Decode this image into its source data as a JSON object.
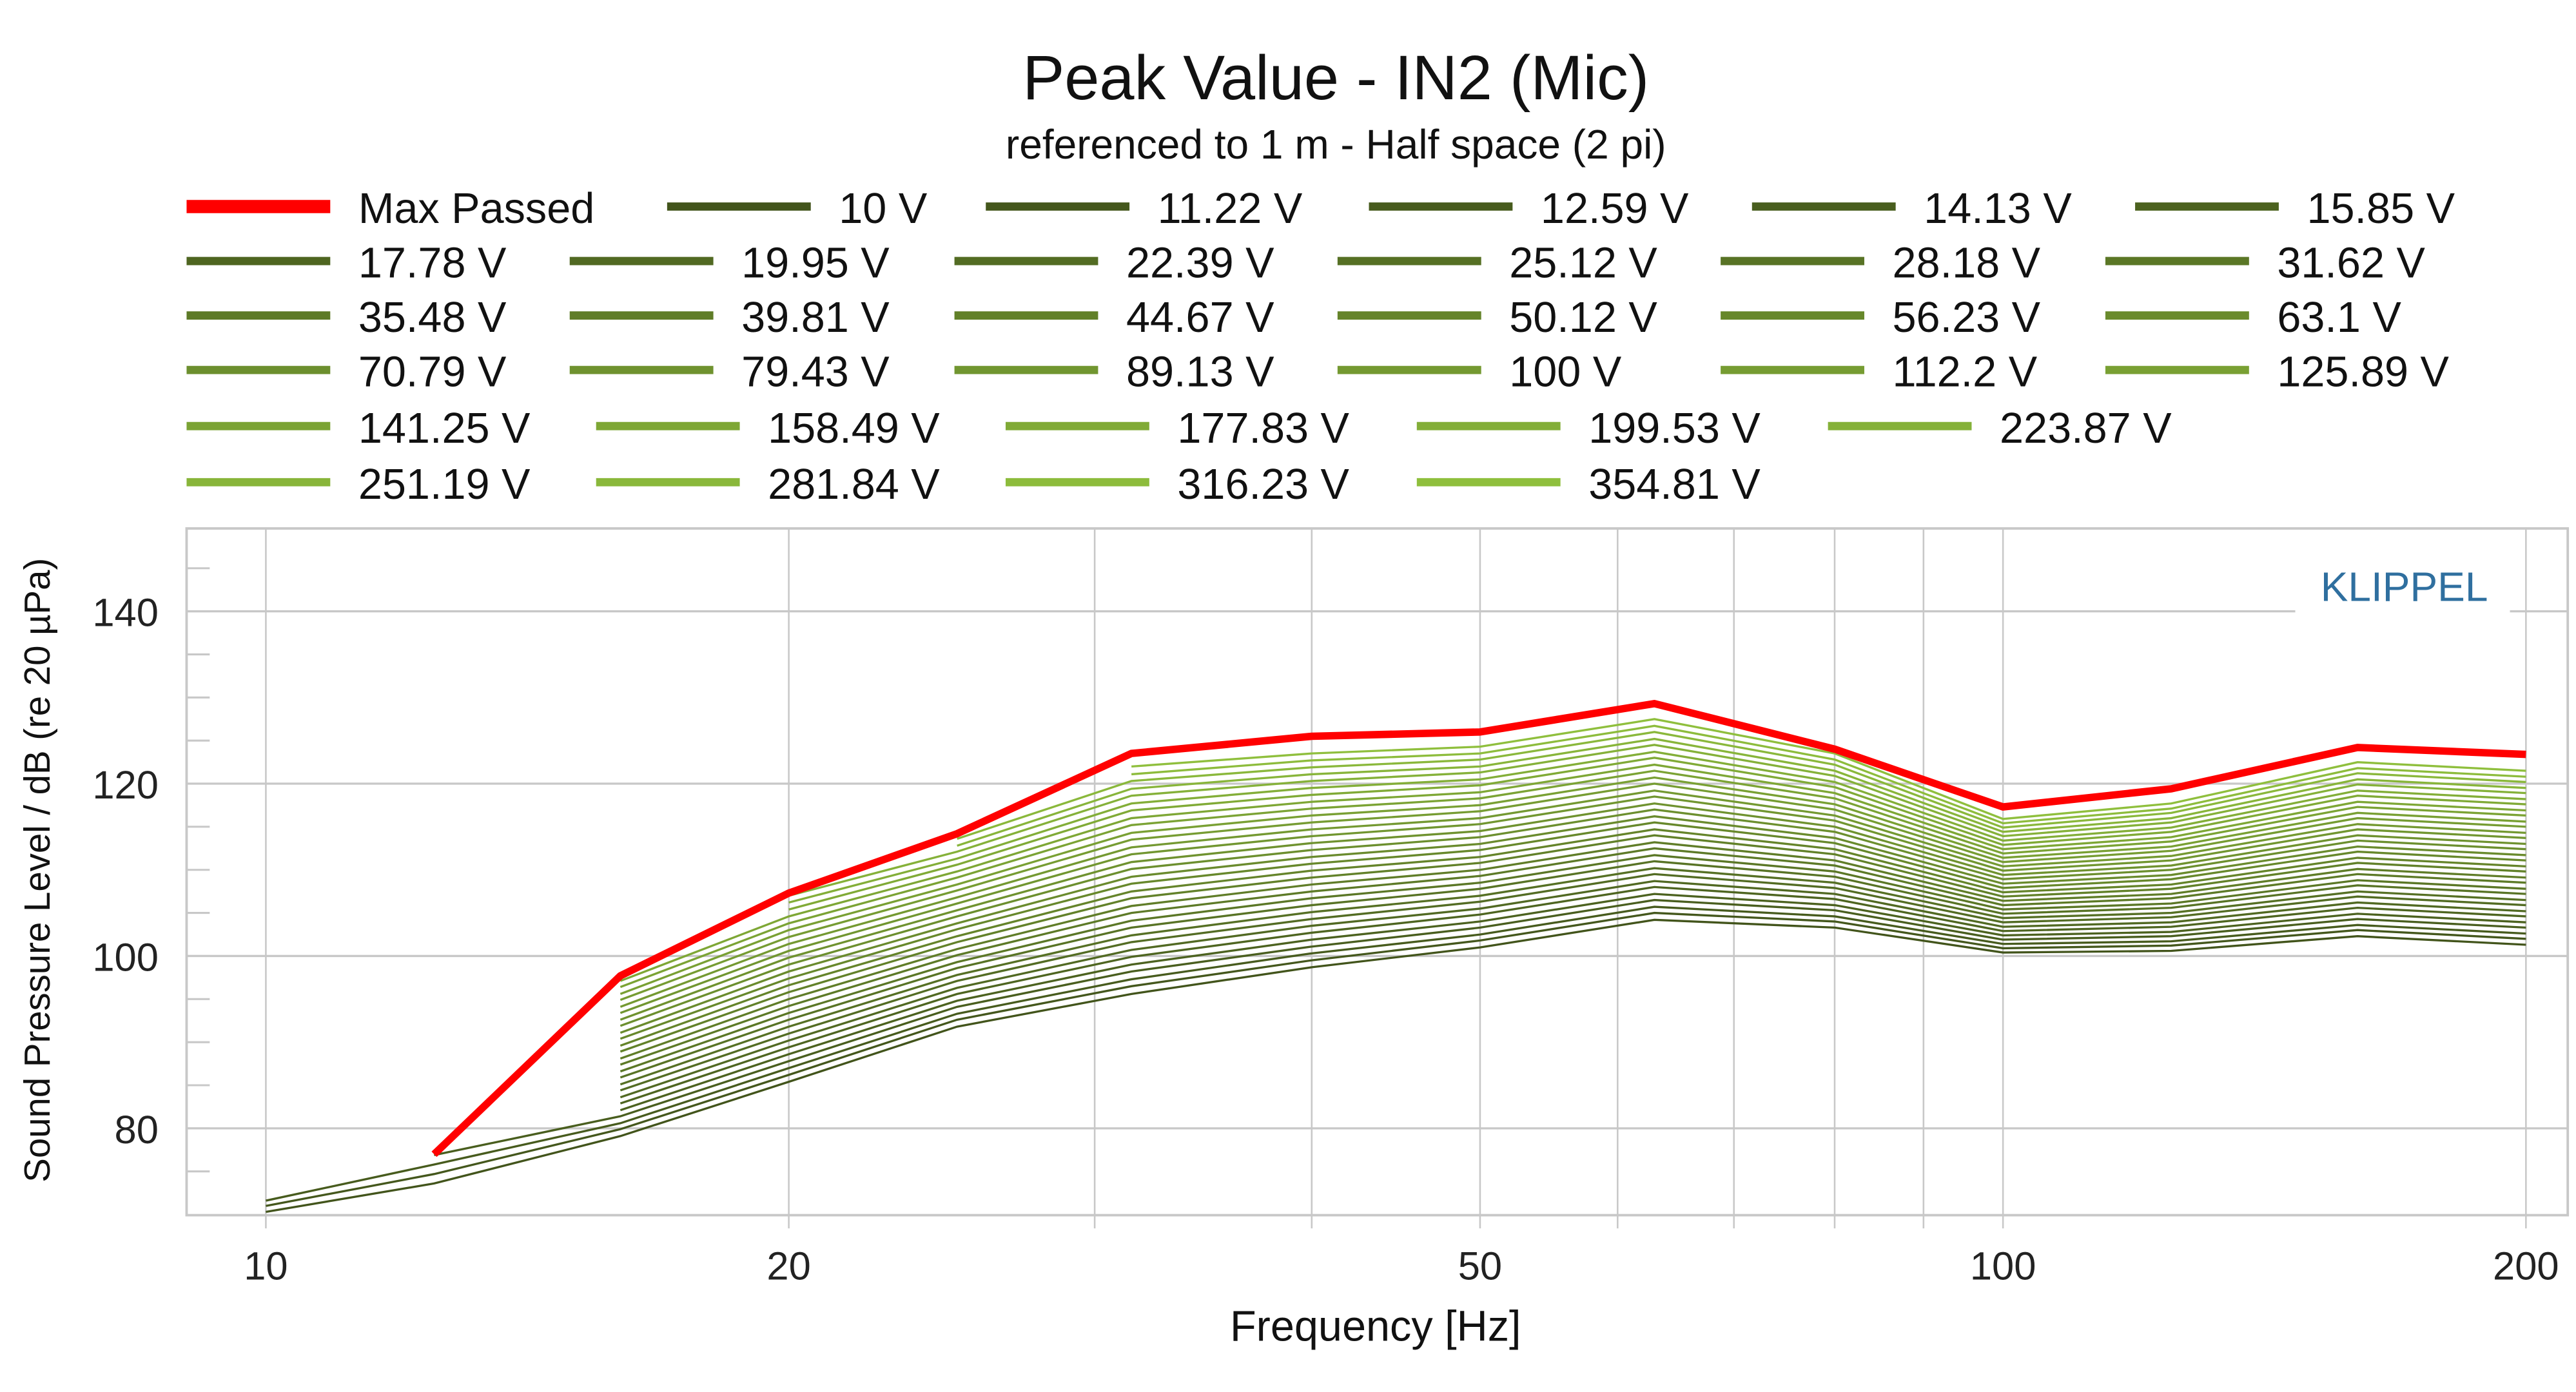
{
  "chart_data": {
    "type": "line",
    "title": "Peak Value - IN2 (Mic)",
    "subtitle": "referenced to 1 m - Half space (2 pi)",
    "xlabel": "Frequency [Hz]",
    "ylabel": "Sound Pressure Level / dB (re 20 µPa)",
    "watermark": "KLIPPEL",
    "x_scale": "log",
    "xlim": [
      8.5,
      210
    ],
    "ylim": [
      70,
      150
    ],
    "x_ticks": [
      10,
      20,
      50,
      100,
      200
    ],
    "x_tick_labels": [
      "10",
      "20",
      "50",
      "100",
      "200"
    ],
    "y_ticks": [
      80,
      100,
      120,
      140
    ],
    "y_tick_labels": [
      "80",
      "100",
      "120",
      "140"
    ],
    "grid": true,
    "legend_position": "top",
    "colors": {
      "max_passed": "#ff0000",
      "series_first": "#42541b",
      "series_last": "#8fbf3d",
      "watermark": "#2f6f9f",
      "grid": "#c8c8c8"
    },
    "x": [
      10,
      12.5,
      16,
      20,
      25,
      31.5,
      40,
      50,
      63,
      80,
      100,
      125,
      160,
      200
    ],
    "max_passed": {
      "name": "Max Passed",
      "values": [
        null,
        77.0,
        97.7,
        107.3,
        114.2,
        123.5,
        125.5,
        126.0,
        129.3,
        124.0,
        117.3,
        119.4,
        124.2,
        123.4
      ]
    },
    "series": [
      {
        "name": "10 V",
        "values": [
          70.3,
          73.6,
          79.1,
          85.4,
          91.8,
          95.6,
          98.7,
          101.0,
          104.2,
          103.3,
          100.4,
          100.6,
          102.3,
          101.3
        ]
      },
      {
        "name": "11.22 V",
        "values": [
          71.0,
          74.7,
          79.9,
          86.2,
          92.6,
          96.5,
          99.5,
          101.8,
          105.0,
          104.0,
          100.9,
          101.2,
          103.0,
          102.0
        ]
      },
      {
        "name": "12.59 V",
        "values": [
          71.6,
          75.8,
          80.6,
          87.0,
          93.3,
          97.3,
          100.3,
          102.5,
          105.7,
          104.6,
          101.4,
          101.7,
          103.6,
          102.6
        ]
      },
      {
        "name": "14.13 V",
        "values": [
          null,
          76.9,
          81.4,
          87.8,
          94.1,
          98.2,
          101.1,
          103.3,
          106.5,
          105.3,
          101.9,
          102.3,
          104.3,
          103.3
        ]
      },
      {
        "name": "15.85 V",
        "values": [
          null,
          null,
          82.1,
          88.6,
          94.8,
          99.0,
          101.9,
          104.0,
          107.2,
          105.9,
          102.4,
          102.8,
          104.9,
          103.9
        ]
      },
      {
        "name": "17.78 V",
        "values": [
          null,
          null,
          82.9,
          89.4,
          95.6,
          99.9,
          102.7,
          104.8,
          108.0,
          106.6,
          102.9,
          103.4,
          105.6,
          104.6
        ]
      },
      {
        "name": "19.95 V",
        "values": [
          null,
          null,
          83.6,
          90.2,
          96.3,
          100.7,
          103.5,
          105.5,
          108.7,
          107.2,
          103.4,
          103.9,
          106.2,
          105.2
        ]
      },
      {
        "name": "22.39 V",
        "values": [
          null,
          null,
          84.4,
          91.0,
          97.1,
          101.6,
          104.3,
          106.3,
          109.5,
          107.9,
          103.9,
          104.5,
          106.9,
          105.9
        ]
      },
      {
        "name": "25.12 V",
        "values": [
          null,
          null,
          85.1,
          91.8,
          97.8,
          102.4,
          105.1,
          107.0,
          110.2,
          108.5,
          104.4,
          105.0,
          107.5,
          106.5
        ]
      },
      {
        "name": "28.18 V",
        "values": [
          null,
          null,
          85.9,
          92.6,
          98.6,
          103.3,
          105.9,
          107.8,
          111.0,
          109.2,
          104.9,
          105.6,
          108.2,
          107.2
        ]
      },
      {
        "name": "31.62 V",
        "values": [
          null,
          null,
          86.6,
          93.4,
          99.3,
          104.1,
          106.7,
          108.5,
          111.7,
          109.8,
          105.4,
          106.1,
          108.8,
          107.8
        ]
      },
      {
        "name": "35.48 V",
        "values": [
          null,
          null,
          87.4,
          94.2,
          100.1,
          105.0,
          107.5,
          109.3,
          112.5,
          110.5,
          105.9,
          106.7,
          109.5,
          108.5
        ]
      },
      {
        "name": "39.81 V",
        "values": [
          null,
          null,
          88.1,
          95.0,
          100.8,
          105.8,
          108.3,
          110.0,
          113.2,
          111.1,
          106.4,
          107.2,
          110.1,
          109.1
        ]
      },
      {
        "name": "44.67 V",
        "values": [
          null,
          null,
          88.9,
          95.8,
          101.6,
          106.7,
          109.1,
          110.8,
          114.0,
          111.8,
          106.9,
          107.8,
          110.8,
          109.8
        ]
      },
      {
        "name": "50.12 V",
        "values": [
          null,
          null,
          89.6,
          96.6,
          102.3,
          107.5,
          109.9,
          111.5,
          114.7,
          112.4,
          107.4,
          108.3,
          111.4,
          110.4
        ]
      },
      {
        "name": "56.23 V",
        "values": [
          null,
          null,
          90.4,
          97.4,
          103.1,
          108.4,
          110.7,
          112.3,
          115.5,
          113.1,
          107.9,
          108.9,
          112.1,
          111.1
        ]
      },
      {
        "name": "63.1 V",
        "values": [
          null,
          null,
          91.1,
          98.2,
          103.8,
          109.2,
          111.5,
          113.0,
          116.2,
          113.7,
          108.4,
          109.4,
          112.7,
          111.7
        ]
      },
      {
        "name": "70.79 V",
        "values": [
          null,
          null,
          91.9,
          99.0,
          104.6,
          110.1,
          112.3,
          113.8,
          117.0,
          114.4,
          108.9,
          110.0,
          113.4,
          112.4
        ]
      },
      {
        "name": "79.43 V",
        "values": [
          null,
          null,
          92.6,
          99.8,
          105.3,
          110.9,
          113.1,
          114.5,
          117.7,
          115.0,
          109.4,
          110.5,
          114.0,
          113.0
        ]
      },
      {
        "name": "89.13 V",
        "values": [
          null,
          null,
          93.4,
          100.6,
          106.1,
          111.8,
          113.9,
          115.3,
          118.5,
          115.7,
          109.9,
          111.1,
          114.7,
          113.7
        ]
      },
      {
        "name": "100 V",
        "values": [
          null,
          null,
          94.1,
          101.4,
          106.8,
          112.6,
          114.7,
          116.0,
          119.2,
          116.3,
          110.4,
          111.6,
          115.3,
          114.3
        ]
      },
      {
        "name": "112.2 V",
        "values": [
          null,
          null,
          94.9,
          102.2,
          107.6,
          113.5,
          115.5,
          116.8,
          120.0,
          117.0,
          110.9,
          112.2,
          116.0,
          115.0
        ]
      },
      {
        "name": "125.89 V",
        "values": [
          null,
          null,
          95.6,
          103.0,
          108.3,
          114.3,
          116.3,
          117.5,
          120.7,
          117.6,
          111.4,
          112.7,
          116.6,
          115.6
        ]
      },
      {
        "name": "141.25 V",
        "values": [
          null,
          null,
          96.4,
          103.8,
          109.1,
          115.2,
          117.1,
          118.3,
          121.5,
          118.3,
          111.9,
          113.3,
          117.3,
          116.3
        ]
      },
      {
        "name": "158.49 V",
        "values": [
          null,
          null,
          97.1,
          104.6,
          109.8,
          116.0,
          117.9,
          119.0,
          122.2,
          118.9,
          112.4,
          113.8,
          117.9,
          116.9
        ]
      },
      {
        "name": "177.83 V",
        "values": [
          null,
          null,
          null,
          105.4,
          110.6,
          116.9,
          118.7,
          119.8,
          123.0,
          119.6,
          112.9,
          114.4,
          118.6,
          117.6
        ]
      },
      {
        "name": "199.53 V",
        "values": [
          null,
          null,
          null,
          106.2,
          111.3,
          117.7,
          119.5,
          120.5,
          123.7,
          120.2,
          113.4,
          114.9,
          119.2,
          118.2
        ]
      },
      {
        "name": "223.87 V",
        "values": [
          null,
          null,
          null,
          107.0,
          112.1,
          118.6,
          120.3,
          121.3,
          124.5,
          120.9,
          113.9,
          115.5,
          119.9,
          118.9
        ]
      },
      {
        "name": "251.19 V",
        "values": [
          null,
          null,
          null,
          null,
          112.8,
          119.4,
          121.1,
          122.0,
          125.2,
          121.5,
          114.4,
          116.0,
          120.5,
          119.5
        ]
      },
      {
        "name": "281.84 V",
        "values": [
          null,
          null,
          null,
          null,
          113.6,
          120.3,
          121.9,
          122.8,
          126.0,
          122.2,
          114.9,
          116.6,
          121.2,
          120.2
        ]
      },
      {
        "name": "316.23 V",
        "values": [
          null,
          null,
          null,
          null,
          null,
          121.1,
          122.7,
          123.5,
          126.7,
          122.8,
          115.4,
          117.1,
          121.8,
          120.8
        ]
      },
      {
        "name": "354.81 V",
        "values": [
          null,
          null,
          null,
          null,
          null,
          122.0,
          123.5,
          124.3,
          127.5,
          123.5,
          115.9,
          117.7,
          122.5,
          121.5
        ]
      }
    ]
  }
}
